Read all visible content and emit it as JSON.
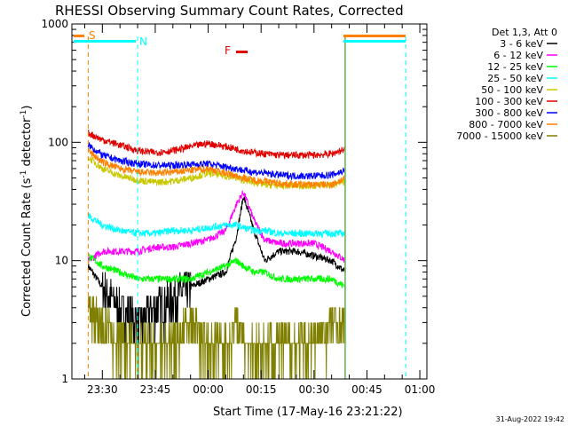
{
  "chart_data": {
    "type": "line",
    "title": "RHESSI Observing Summary Count Rates, Corrected",
    "xlabel": "Start Time (17-May-16 23:21:22)",
    "ylabel": "Corrected Count Rate (s",
    "ylabel_sup1": "-1",
    "ylabel_mid": " detector",
    "ylabel_sup2": "-1",
    "ylabel_end": ")",
    "yscale": "log",
    "ylim": [
      1,
      1000
    ],
    "ytick_labels": [
      "1",
      "10",
      "100",
      "1000"
    ],
    "xlim": [
      "23:21:22",
      "01:02:00"
    ],
    "xtick_labels": [
      "23:30",
      "23:45",
      "00:00",
      "00:15",
      "00:30",
      "00:45",
      "01:00"
    ],
    "legend_title": "Det 1,3, Att 0",
    "legend_position": "right",
    "timestamp": "31-Aug-2022 19:42",
    "markers": [
      {
        "label": "S",
        "color": "#ff8000"
      },
      {
        "label": "N",
        "color": "#00ffff"
      },
      {
        "label": "F",
        "color": "#e00000"
      }
    ],
    "vertical_lines": [
      {
        "time": "23:26:00",
        "color": "#ff8000",
        "style": "dashed"
      },
      {
        "time": "23:40:00",
        "color": "#00ffff",
        "style": "dashed"
      },
      {
        "time": "00:39:00",
        "color": "#00ffff",
        "style": "solid"
      },
      {
        "time": "00:39:00",
        "color": "#ff8000",
        "style": "solid"
      },
      {
        "time": "00:56:00",
        "color": "#00ffff",
        "style": "dashed"
      }
    ],
    "x": [
      "23:26",
      "23:30",
      "23:35",
      "23:40",
      "23:45",
      "23:50",
      "23:55",
      "00:00",
      "00:05",
      "00:08",
      "00:10",
      "00:13",
      "00:16",
      "00:20",
      "00:25",
      "00:30",
      "00:35",
      "00:39"
    ],
    "series": [
      {
        "name": "3 - 6 keV",
        "color": "#000000",
        "values": [
          9,
          6,
          4,
          3,
          4,
          5,
          6,
          7,
          8,
          16,
          35,
          18,
          10,
          12,
          12,
          11,
          10,
          8
        ]
      },
      {
        "name": "6 - 12 keV",
        "color": "#ff00ff",
        "values": [
          10,
          12,
          12,
          12,
          13,
          13,
          14,
          15,
          18,
          30,
          38,
          22,
          15,
          14,
          14,
          14,
          12,
          10
        ]
      },
      {
        "name": "12 - 25 keV",
        "color": "#00ff00",
        "values": [
          11,
          9,
          8,
          7,
          7,
          7,
          7,
          8,
          9,
          10,
          9,
          8,
          8,
          7,
          7,
          7,
          7,
          6
        ]
      },
      {
        "name": "25 - 50 keV",
        "color": "#00ffff",
        "values": [
          24,
          20,
          18,
          17,
          17,
          18,
          18,
          19,
          20,
          20,
          19,
          18,
          18,
          17,
          17,
          17,
          17,
          17
        ]
      },
      {
        "name": "50 - 100 keV",
        "color": "#c8c800",
        "values": [
          75,
          60,
          52,
          48,
          46,
          47,
          50,
          55,
          52,
          50,
          48,
          46,
          44,
          43,
          43,
          43,
          44,
          46
        ]
      },
      {
        "name": "100 - 300 keV",
        "color": "#e00000",
        "values": [
          120,
          105,
          95,
          85,
          82,
          85,
          92,
          98,
          92,
          88,
          85,
          82,
          80,
          78,
          78,
          78,
          80,
          88
        ]
      },
      {
        "name": "300 - 800 keV",
        "color": "#0000ff",
        "values": [
          95,
          78,
          70,
          66,
          64,
          64,
          65,
          66,
          62,
          60,
          58,
          56,
          55,
          53,
          52,
          52,
          53,
          58
        ]
      },
      {
        "name": "800 - 7000 keV",
        "color": "#ff8000",
        "values": [
          85,
          68,
          60,
          56,
          55,
          56,
          58,
          60,
          55,
          52,
          50,
          48,
          47,
          45,
          44,
          44,
          44,
          50
        ]
      },
      {
        "name": "7000 - 15000 keV",
        "color": "#808000",
        "values": [
          4,
          3,
          2,
          2,
          2,
          2,
          3,
          2,
          2,
          3,
          2,
          2,
          2,
          2,
          2,
          2,
          3,
          3
        ]
      }
    ]
  }
}
